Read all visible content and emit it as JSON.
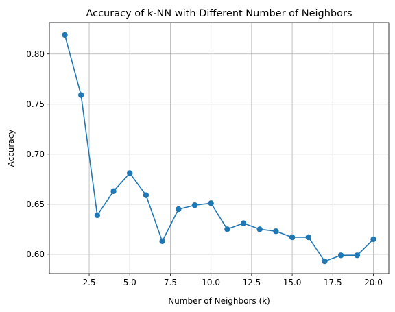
{
  "chart_data": {
    "type": "line",
    "title": "Accuracy of k-NN with Different Number of Neighbors",
    "xlabel": "Number of Neighbors (k)",
    "ylabel": "Accuracy",
    "x": [
      1,
      2,
      3,
      4,
      5,
      6,
      7,
      8,
      9,
      10,
      11,
      12,
      13,
      14,
      15,
      16,
      17,
      18,
      19,
      20
    ],
    "series": [
      {
        "values": [
          0.819,
          0.759,
          0.639,
          0.663,
          0.681,
          0.659,
          0.613,
          0.645,
          0.649,
          0.651,
          0.625,
          0.631,
          0.625,
          0.623,
          0.617,
          0.617,
          0.593,
          0.599,
          0.599,
          0.615
        ],
        "color": "#1f77b4",
        "marker": "circle"
      }
    ],
    "xlim": [
      0.05,
      20.95
    ],
    "ylim": [
      0.5807,
      0.8313
    ],
    "xticks": [
      2.5,
      5.0,
      7.5,
      10.0,
      12.5,
      15.0,
      17.5,
      20.0
    ],
    "xtick_labels": [
      "2.5",
      "5.0",
      "7.5",
      "10.0",
      "12.5",
      "15.0",
      "17.5",
      "20.0"
    ],
    "yticks": [
      0.6,
      0.65,
      0.7,
      0.75,
      0.8
    ],
    "ytick_labels": [
      "0.60",
      "0.65",
      "0.70",
      "0.75",
      "0.80"
    ],
    "grid": true
  }
}
